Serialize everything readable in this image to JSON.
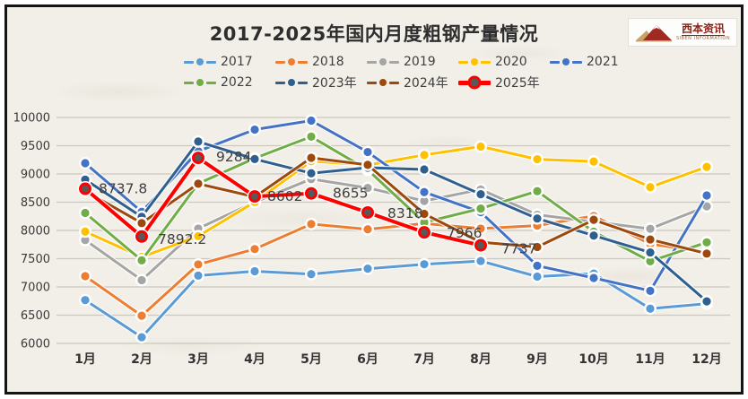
{
  "title": "2017-2025年国内月度粗钢产量情况",
  "logo": {
    "name": "西本资讯",
    "subtitle": "SIBEN INFORMATION"
  },
  "chart_data": {
    "type": "line",
    "x": [
      "1月",
      "2月",
      "3月",
      "4月",
      "5月",
      "6月",
      "7月",
      "8月",
      "9月",
      "10月",
      "11月",
      "12月"
    ],
    "ylabel": "",
    "xlabel": "",
    "ylim": [
      6000,
      10000
    ],
    "yticks": [
      6000,
      6500,
      7000,
      7500,
      8000,
      8500,
      9000,
      9500,
      10000
    ],
    "grid": true,
    "legend_position": "top",
    "series": [
      {
        "name": "2017",
        "color": "#5B9BD5",
        "values": [
          6767,
          6110,
          7200,
          7278,
          7226,
          7323,
          7402,
          7459,
          7183,
          7236,
          6615,
          6705
        ]
      },
      {
        "name": "2018",
        "color": "#ED7D31",
        "values": [
          7191,
          6490,
          7398,
          7670,
          8113,
          8020,
          8124,
          8033,
          8085,
          8255,
          7762,
          7612
        ]
      },
      {
        "name": "2019",
        "color": "#A5A5A5",
        "values": [
          7830,
          7120,
          8033,
          8503,
          8909,
          8753,
          8522,
          8725,
          8277,
          8152,
          8029,
          8427
        ]
      },
      {
        "name": "2020",
        "color": "#FFC000",
        "values": [
          7980,
          7530,
          7898,
          8503,
          9227,
          9158,
          9336,
          9485,
          9261,
          9220,
          8766,
          9125
        ]
      },
      {
        "name": "2021",
        "color": "#4472C4",
        "values": [
          9190,
          8330,
          9402,
          9785,
          9945,
          9388,
          8679,
          8324,
          7375,
          7158,
          6931,
          8619
        ]
      },
      {
        "name": "2022",
        "color": "#70AD47",
        "values": [
          8310,
          7470,
          8830,
          9278,
          9661,
          9073,
          8143,
          8387,
          8695,
          7976,
          7454,
          7789
        ]
      },
      {
        "name": "2023年",
        "color": "#2E5F8F",
        "values": [
          8900,
          8240,
          9573,
          9264,
          9012,
          9111,
          9080,
          8641,
          8211,
          7909,
          7610,
          6744
        ]
      },
      {
        "name": "2024年",
        "color": "#9E480E",
        "values": [
          8700,
          8130,
          8827,
          8594,
          9286,
          9161,
          8294,
          7792,
          7707,
          8188,
          7840,
          7590
        ]
      },
      {
        "name": "2025年",
        "color": "#FE0000",
        "marker_fill": "#595959",
        "labeled": true,
        "values": [
          8737.8,
          7892.2,
          9284,
          8602,
          8655,
          8318,
          7966,
          7737,
          null,
          null,
          null,
          null
        ]
      }
    ],
    "data_labels": [
      "8737.8",
      "7892.2",
      "9284",
      "8602",
      "8655",
      "8318",
      "7966",
      "7737"
    ]
  }
}
